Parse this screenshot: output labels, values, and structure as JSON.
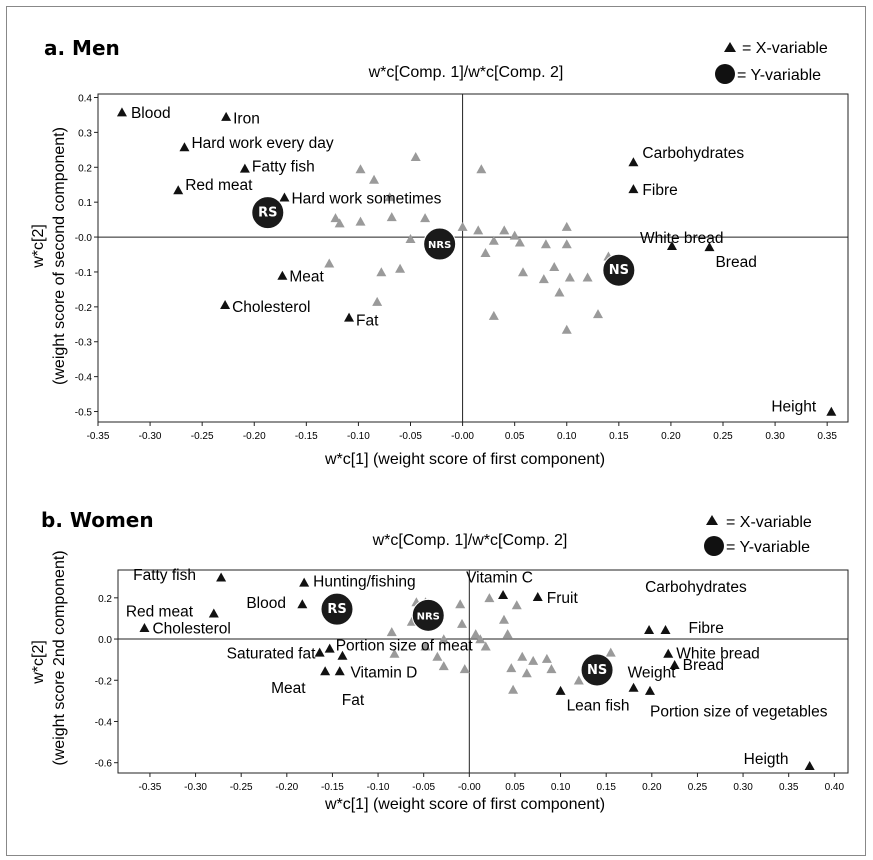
{
  "chart_data": [
    {
      "type": "scatter",
      "panel_title": "a. Men",
      "title": "w*c[Comp. 1]/w*c[Comp. 2]",
      "xlabel": "w*c[1] (weight score of first component)",
      "ylabel": "w*c[2]",
      "ylabel2": "(weight score of second component)",
      "xlim": [
        -0.35,
        0.37
      ],
      "ylim": [
        -0.53,
        0.41
      ],
      "xticks": [
        -0.35,
        -0.3,
        -0.25,
        -0.2,
        -0.15,
        -0.1,
        -0.05,
        0.0,
        0.05,
        0.1,
        0.15,
        0.2,
        0.25,
        0.3,
        0.35
      ],
      "yticks": [
        0.4,
        0.3,
        0.2,
        0.1,
        0.0,
        -0.1,
        -0.2,
        -0.3,
        -0.4,
        -0.5
      ],
      "xtick_labels": [
        "-0.35",
        "-0.30",
        "-0.25",
        "-0.20",
        "-0.15",
        "-0.10",
        "-0.05",
        "-0.00",
        "0.05",
        "0.10",
        "0.15",
        "0.20",
        "0.25",
        "0.30",
        "0.35"
      ],
      "ytick_labels": [
        "0.4",
        "0.3",
        "0.2",
        "0.1",
        "-0.0",
        "-0.1",
        "-0.2",
        "-0.3",
        "-0.4",
        "-0.5"
      ],
      "legend": {
        "x_marker": "= X-variable",
        "y_marker": "= Y-variable"
      },
      "labeled_x_variables": [
        {
          "label": "Blood",
          "x": -0.327,
          "y": 0.358
        },
        {
          "label": "Iron",
          "x": -0.227,
          "y": 0.345
        },
        {
          "label": "Hard work every day",
          "x": -0.267,
          "y": 0.258
        },
        {
          "label": "Fatty fish",
          "x": -0.209,
          "y": 0.197
        },
        {
          "label": "Red meat",
          "x": -0.273,
          "y": 0.135
        },
        {
          "label": "Hard work sometimes",
          "x": -0.171,
          "y": 0.114
        },
        {
          "label": "Meat",
          "x": -0.173,
          "y": -0.11
        },
        {
          "label": "Cholesterol",
          "x": -0.228,
          "y": -0.194
        },
        {
          "label": "Fat",
          "x": -0.109,
          "y": -0.23
        },
        {
          "label": "Carbohydrates",
          "x": 0.164,
          "y": 0.215
        },
        {
          "label": "Fibre",
          "x": 0.164,
          "y": 0.138
        },
        {
          "label": "White bread",
          "x": 0.201,
          "y": -0.025
        },
        {
          "label": "Bread",
          "x": 0.237,
          "y": -0.028
        },
        {
          "label": "Height",
          "x": 0.354,
          "y": -0.5
        }
      ],
      "other_x_variables": [
        [
          -0.045,
          0.23
        ],
        [
          -0.098,
          0.195
        ],
        [
          0.018,
          0.195
        ],
        [
          -0.085,
          0.165
        ],
        [
          -0.07,
          0.115
        ],
        [
          -0.122,
          0.055
        ],
        [
          -0.118,
          0.04
        ],
        [
          -0.098,
          0.045
        ],
        [
          -0.068,
          0.058
        ],
        [
          -0.036,
          0.055
        ],
        [
          0.0,
          0.03
        ],
        [
          0.015,
          0.02
        ],
        [
          0.04,
          0.02
        ],
        [
          0.05,
          0.005
        ],
        [
          0.1,
          0.03
        ],
        [
          -0.05,
          -0.005
        ],
        [
          -0.03,
          -0.02
        ],
        [
          0.03,
          -0.01
        ],
        [
          0.055,
          -0.015
        ],
        [
          0.08,
          -0.02
        ],
        [
          0.1,
          -0.02
        ],
        [
          0.14,
          -0.055
        ],
        [
          -0.128,
          -0.075
        ],
        [
          -0.078,
          -0.1
        ],
        [
          -0.06,
          -0.09
        ],
        [
          0.058,
          -0.1
        ],
        [
          0.078,
          -0.12
        ],
        [
          0.088,
          -0.085
        ],
        [
          0.103,
          -0.115
        ],
        [
          0.12,
          -0.115
        ],
        [
          0.093,
          -0.158
        ],
        [
          -0.082,
          -0.185
        ],
        [
          0.03,
          -0.225
        ],
        [
          0.13,
          -0.22
        ],
        [
          0.1,
          -0.265
        ],
        [
          0.022,
          -0.045
        ]
      ],
      "y_variables": [
        {
          "label": "RS",
          "x": -0.187,
          "y": 0.07
        },
        {
          "label": "NRS",
          "x": -0.022,
          "y": -0.02
        },
        {
          "label": "NS",
          "x": 0.15,
          "y": -0.095
        }
      ]
    },
    {
      "type": "scatter",
      "panel_title": "b. Women",
      "title": "w*c[Comp. 1]/w*c[Comp. 2]",
      "xlabel": "w*c[1] (weight score of first component)",
      "ylabel": "w*c[2]",
      "ylabel2": "(weight score 2nd component)",
      "xlim": [
        -0.385,
        0.415
      ],
      "ylim": [
        -0.65,
        0.335
      ],
      "xticks": [
        -0.35,
        -0.3,
        -0.25,
        -0.2,
        -0.15,
        -0.1,
        -0.05,
        0.0,
        0.05,
        0.1,
        0.15,
        0.2,
        0.25,
        0.3,
        0.35,
        0.4
      ],
      "yticks": [
        0.2,
        0.0,
        -0.2,
        -0.4,
        -0.6
      ],
      "xtick_labels": [
        "-0.35",
        "-0.30",
        "-0.25",
        "-0.20",
        "-0.15",
        "-0.10",
        "-0.05",
        "-0.00",
        "0.05",
        "0.10",
        "0.15",
        "0.20",
        "0.25",
        "0.30",
        "0.35",
        "0.40"
      ],
      "ytick_labels": [
        "0.2",
        "0.0",
        "-0.2",
        "-0.4",
        "-0.6"
      ],
      "legend": {
        "x_marker": "= X-variable",
        "y_marker": "= Y-variable"
      },
      "labeled_x_variables": [
        {
          "label": "Fatty fish",
          "x": -0.272,
          "y": 0.3
        },
        {
          "label": "Red meat",
          "x": -0.28,
          "y": 0.125
        },
        {
          "label": "Cholesterol",
          "x": -0.356,
          "y": 0.055
        },
        {
          "label": "Hunting/fishing",
          "x": -0.181,
          "y": 0.275
        },
        {
          "label": "Blood",
          "x": -0.183,
          "y": 0.17
        },
        {
          "label": "Saturated fat",
          "x": -0.164,
          "y": -0.065
        },
        {
          "label": "Portion size  of meat",
          "x": -0.153,
          "y": -0.045
        },
        {
          "label": "Vitamin D",
          "x": -0.139,
          "y": -0.08
        },
        {
          "label": "Meat",
          "x": -0.158,
          "y": -0.155
        },
        {
          "label": "Fat",
          "x": -0.142,
          "y": -0.155
        },
        {
          "label": "Vitamin C",
          "x": 0.037,
          "y": 0.215
        },
        {
          "label": "Fruit",
          "x": 0.075,
          "y": 0.205
        },
        {
          "label": "Carbohydrates",
          "x": 0.197,
          "y": 0.045
        },
        {
          "label": "Fibre",
          "x": 0.215,
          "y": 0.045
        },
        {
          "label": "White bread",
          "x": 0.218,
          "y": -0.07
        },
        {
          "label": "Bread",
          "x": 0.225,
          "y": -0.125
        },
        {
          "label": "Weight",
          "x": 0.18,
          "y": -0.235
        },
        {
          "label": "Lean fish",
          "x": 0.1,
          "y": -0.25
        },
        {
          "label": "Portion size  of vegetables",
          "x": 0.198,
          "y": -0.25
        },
        {
          "label": "Heigth",
          "x": 0.373,
          "y": -0.615
        }
      ],
      "other_x_variables": [
        [
          -0.058,
          0.18
        ],
        [
          -0.048,
          0.18
        ],
        [
          -0.01,
          0.17
        ],
        [
          0.022,
          0.2
        ],
        [
          0.052,
          0.165
        ],
        [
          -0.085,
          0.035
        ],
        [
          -0.063,
          0.085
        ],
        [
          -0.008,
          0.075
        ],
        [
          0.038,
          0.095
        ],
        [
          0.042,
          0.025
        ],
        [
          0.007,
          0.025
        ],
        [
          0.012,
          0.0
        ],
        [
          -0.028,
          0.0
        ],
        [
          0.018,
          -0.035
        ],
        [
          -0.048,
          -0.035
        ],
        [
          -0.082,
          -0.07
        ],
        [
          -0.035,
          -0.085
        ],
        [
          0.058,
          -0.085
        ],
        [
          0.07,
          -0.105
        ],
        [
          0.085,
          -0.095
        ],
        [
          0.09,
          -0.145
        ],
        [
          0.063,
          -0.165
        ],
        [
          -0.028,
          -0.13
        ],
        [
          0.046,
          -0.14
        ],
        [
          -0.005,
          -0.145
        ],
        [
          0.048,
          -0.245
        ],
        [
          0.12,
          -0.2
        ],
        [
          0.155,
          -0.065
        ]
      ],
      "y_variables": [
        {
          "label": "RS",
          "x": -0.145,
          "y": 0.145
        },
        {
          "label": "NRS",
          "x": -0.045,
          "y": 0.115
        },
        {
          "label": "NS",
          "x": 0.14,
          "y": -0.15
        }
      ]
    }
  ]
}
